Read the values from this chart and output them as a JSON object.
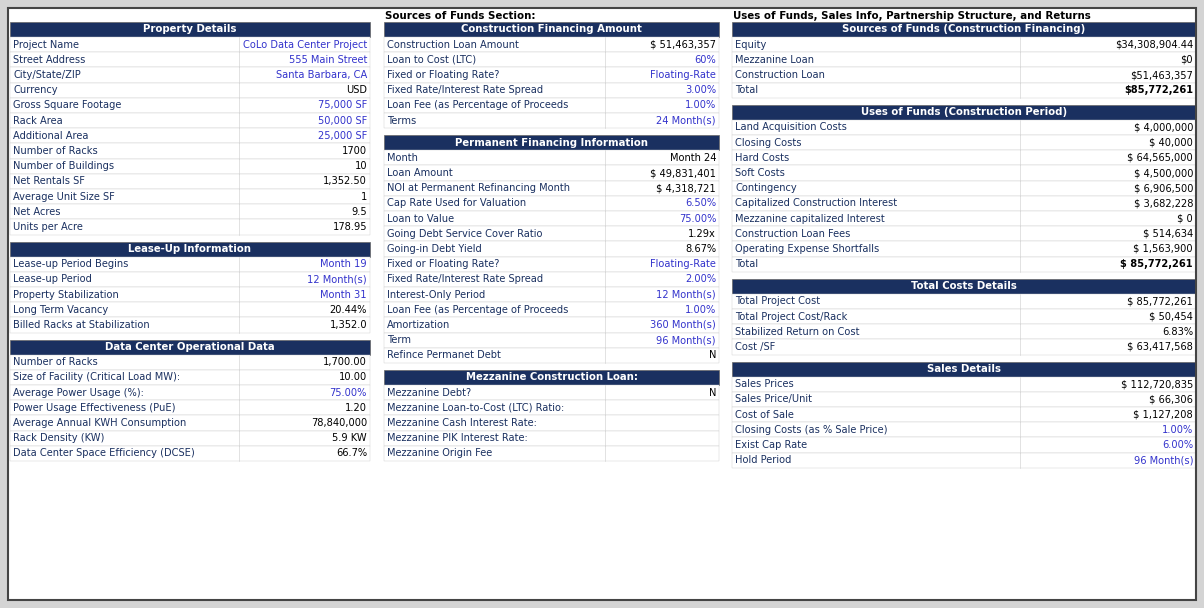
{
  "header_bg": "#1a3060",
  "header_fg": "#ffffff",
  "label_fg": "#1a3060",
  "value_fg_blue": "#3333cc",
  "value_fg_black": "#000000",
  "section_label_top": "Sources of Funds Section:",
  "section_label_top2": "Uses of Funds, Sales Info, Partnership Structure, and Returns",
  "col1_sections": [
    {
      "header": "Property Details",
      "rows": [
        [
          "Project Name",
          "CoLo Data Center Project",
          "blue"
        ],
        [
          "Street Address",
          "555 Main Street",
          "blue"
        ],
        [
          "City/State/ZIP",
          "Santa Barbara, CA",
          "blue"
        ],
        [
          "Currency",
          "USD",
          "black"
        ],
        [
          "Gross Square Footage",
          "75,000 SF",
          "blue"
        ],
        [
          "Rack Area",
          "50,000 SF",
          "blue"
        ],
        [
          "Additional Area",
          "25,000 SF",
          "blue"
        ],
        [
          "Number of Racks",
          "1700",
          "black"
        ],
        [
          "Number of Buildings",
          "10",
          "black"
        ],
        [
          "Net Rentals SF",
          "1,352.50",
          "black"
        ],
        [
          "Average Unit Size SF",
          "1",
          "black"
        ],
        [
          "Net Acres",
          "9.5",
          "black"
        ],
        [
          "Units per Acre",
          "178.95",
          "black"
        ]
      ]
    },
    {
      "header": "Lease-Up Information",
      "rows": [
        [
          "Lease-up Period Begins",
          "Month 19",
          "blue"
        ],
        [
          "Lease-up Period",
          "12 Month(s)",
          "blue"
        ],
        [
          "Property Stabilization",
          "Month 31",
          "blue"
        ],
        [
          "Long Term Vacancy",
          "20.44%",
          "black"
        ],
        [
          "Billed Racks at Stabilization",
          "1,352.0",
          "black"
        ]
      ]
    },
    {
      "header": "Data Center Operational Data",
      "rows": [
        [
          "Number of Racks",
          "1,700.00",
          "black"
        ],
        [
          "Size of Facility (Critical Load MW):",
          "10.00",
          "black"
        ],
        [
          "Average Power Usage (%):",
          "75.00%",
          "blue"
        ],
        [
          "Power Usage Effectiveness (PuE)",
          "1.20",
          "black"
        ],
        [
          "Average Annual KWH Consumption",
          "78,840,000",
          "black"
        ],
        [
          "Rack Density (KW)",
          "5.9 KW",
          "black"
        ],
        [
          "Data Center Space Efficiency (DCSE)",
          "66.7%",
          "black"
        ]
      ]
    }
  ],
  "col2_sections": [
    {
      "header": "Construction Financing Amount",
      "rows": [
        [
          "Construction Loan Amount",
          "$ 51,463,357",
          "black"
        ],
        [
          "Loan to Cost (LTC)",
          "60%",
          "blue"
        ],
        [
          "Fixed or Floating Rate?",
          "Floating-Rate",
          "blue"
        ],
        [
          "Fixed Rate/Interest Rate Spread",
          "3.00%",
          "blue"
        ],
        [
          "Loan Fee (as Percentage of Proceeds",
          "1.00%",
          "blue"
        ],
        [
          "Terms",
          "24 Month(s)",
          "blue"
        ]
      ]
    },
    {
      "header": "Permanent Financing Information",
      "rows": [
        [
          "Month",
          "Month 24",
          "black"
        ],
        [
          "Loan Amount",
          "$ 49,831,401",
          "black"
        ],
        [
          "NOI at Permanent Refinancing Month",
          "$ 4,318,721",
          "black"
        ],
        [
          "Cap Rate Used for Valuation",
          "6.50%",
          "blue"
        ],
        [
          "Loan to Value",
          "75.00%",
          "blue"
        ],
        [
          "Going Debt Service Cover Ratio",
          "1.29x",
          "black"
        ],
        [
          "Going-in Debt Yield",
          "8.67%",
          "black"
        ],
        [
          "Fixed or Floating Rate?",
          "Floating-Rate",
          "blue"
        ],
        [
          "Fixed Rate/Interest Rate Spread",
          "2.00%",
          "blue"
        ],
        [
          "Interest-Only Period",
          "12 Month(s)",
          "blue"
        ],
        [
          "Loan Fee (as Percentage of Proceeds",
          "1.00%",
          "blue"
        ],
        [
          "Amortization",
          "360 Month(s)",
          "blue"
        ],
        [
          "Term",
          "96 Month(s)",
          "blue"
        ],
        [
          "Refince Permanet Debt",
          "N",
          "black"
        ]
      ]
    },
    {
      "header": "Mezzanine Construction Loan:",
      "rows": [
        [
          "Mezzanine Debt?",
          "N",
          "black"
        ],
        [
          "Mezzanine Loan-to-Cost (LTC) Ratio:",
          "",
          "black"
        ],
        [
          "Mezzanine Cash Interest Rate:",
          "",
          "black"
        ],
        [
          "Mezzanine PIK Interest Rate:",
          "",
          "black"
        ],
        [
          "Mezzanine Origin Fee",
          "",
          "black"
        ]
      ]
    }
  ],
  "col3_sections": [
    {
      "header": "Sources of Funds (Construction Financing)",
      "rows": [
        [
          "Equity",
          "$34,308,904.44",
          "black"
        ],
        [
          "Mezzanine Loan",
          "$0",
          "black"
        ],
        [
          "Construction Loan",
          "$51,463,357",
          "black"
        ],
        [
          "Total",
          "$85,772,261",
          "bold"
        ]
      ]
    },
    {
      "header": "Uses of Funds (Construction Period)",
      "rows": [
        [
          "Land Acquisition Costs",
          "$ 4,000,000",
          "black"
        ],
        [
          "Closing Costs",
          "$ 40,000",
          "black"
        ],
        [
          "Hard Costs",
          "$ 64,565,000",
          "black"
        ],
        [
          "Soft Costs",
          "$ 4,500,000",
          "black"
        ],
        [
          "Contingency",
          "$ 6,906,500",
          "black"
        ],
        [
          "Capitalized Construction Interest",
          "$ 3,682,228",
          "black"
        ],
        [
          "Mezzanine capitalized Interest",
          "$ 0",
          "black"
        ],
        [
          "Construction Loan Fees",
          "$ 514,634",
          "black"
        ],
        [
          "Operating Expense Shortfalls",
          "$ 1,563,900",
          "black"
        ],
        [
          "Total",
          "$ 85,772,261",
          "bold"
        ]
      ]
    },
    {
      "header": "Total Costs Details",
      "rows": [
        [
          "Total Project Cost",
          "$ 85,772,261",
          "black"
        ],
        [
          "Total Project Cost/Rack",
          "$ 50,454",
          "black"
        ],
        [
          "Stabilized Return on Cost",
          "6.83%",
          "black"
        ],
        [
          "Cost /SF",
          "$ 63,417,568",
          "black"
        ]
      ]
    },
    {
      "header": "Sales Details",
      "rows": [
        [
          "Sales Prices",
          "$ 112,720,835",
          "black"
        ],
        [
          "Sales Price/Unit",
          "$ 66,306",
          "black"
        ],
        [
          "Cost of Sale",
          "$ 1,127,208",
          "black"
        ],
        [
          "Closing Costs (as % Sale Price)",
          "1.00%",
          "blue"
        ],
        [
          "Exist Cap Rate",
          "6.00%",
          "blue"
        ],
        [
          "Hold Period",
          "96 Month(s)",
          "blue"
        ]
      ]
    }
  ]
}
